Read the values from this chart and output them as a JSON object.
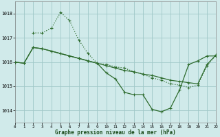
{
  "bg_color": "#d0eaea",
  "grid_color": "#a0c8c8",
  "line_color": "#2d6b2d",
  "title": "Graphe pression niveau de la mer (hPa)",
  "xlim": [
    0,
    22
  ],
  "ylim": [
    1013.5,
    1018.5
  ],
  "yticks": [
    1014,
    1015,
    1016,
    1017,
    1018
  ],
  "xticks": [
    0,
    1,
    2,
    3,
    4,
    5,
    6,
    7,
    8,
    9,
    10,
    11,
    12,
    13,
    14,
    15,
    16,
    17,
    18,
    19,
    20,
    21,
    22
  ],
  "line1_x": [
    0,
    1,
    2,
    3,
    4,
    5,
    6,
    7,
    8,
    9,
    10,
    11,
    12,
    13,
    14,
    15,
    16,
    17,
    18,
    19,
    20,
    21,
    22
  ],
  "line1_y": [
    1016.0,
    1015.95,
    1016.6,
    1016.55,
    1016.45,
    1016.35,
    1016.25,
    1016.15,
    1016.05,
    1015.95,
    1015.85,
    1015.75,
    1015.65,
    1015.6,
    1015.5,
    1015.45,
    1015.35,
    1015.25,
    1015.2,
    1015.15,
    1015.1,
    1015.9,
    1016.3
  ],
  "line2_x": [
    2,
    3,
    4,
    5,
    6,
    7,
    8,
    9,
    10,
    11,
    12,
    13,
    14,
    15,
    16,
    17,
    18,
    19,
    20,
    21,
    22
  ],
  "line2_y": [
    1017.2,
    1017.2,
    1017.4,
    1018.05,
    1017.7,
    1016.9,
    1016.35,
    1015.95,
    1015.9,
    1015.8,
    1015.75,
    1015.6,
    1015.5,
    1015.35,
    1015.25,
    1015.1,
    1015.05,
    1014.95,
    1015.05,
    1015.85,
    1016.3
  ],
  "line3_x": [
    0,
    1,
    2,
    3,
    4,
    5,
    6,
    7,
    8,
    9,
    10,
    11,
    12,
    13,
    14,
    15,
    16,
    17,
    18,
    19,
    20,
    21,
    22
  ],
  "line3_y": [
    1016.0,
    1015.95,
    1016.6,
    1016.55,
    1016.45,
    1016.35,
    1016.25,
    1016.15,
    1016.05,
    1015.95,
    1015.55,
    1015.3,
    1014.75,
    1014.65,
    1014.65,
    1014.05,
    1013.95,
    1014.1,
    1014.85,
    1015.9,
    1016.05,
    1016.25,
    1016.25
  ]
}
